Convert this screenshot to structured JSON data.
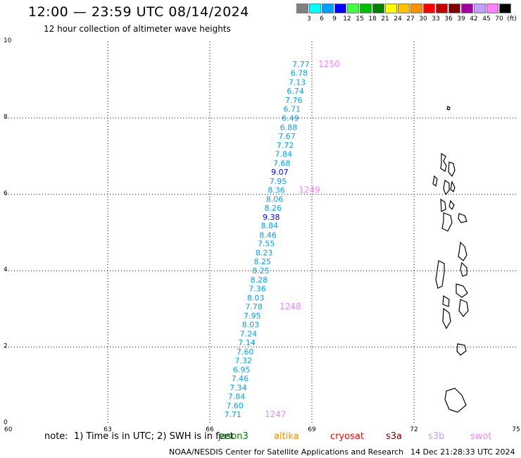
{
  "header": {
    "title": "12:00 — 23:59 UTC 08/14/2024",
    "subtitle": "12 hour collection of altimeter wave heights"
  },
  "color_scale": {
    "labels": [
      "3",
      "6",
      "9",
      "12",
      "15",
      "18",
      "21",
      "24",
      "27",
      "30",
      "33",
      "36",
      "39",
      "42",
      "45",
      "70",
      "(ft)"
    ],
    "colors": [
      "#808080",
      "#00ffff",
      "#00a0ff",
      "#0000ff",
      "#40ff40",
      "#00c000",
      "#008000",
      "#ffff00",
      "#ffc000",
      "#ff9000",
      "#ff0000",
      "#c00000",
      "#800000",
      "#a000a0",
      "#c0a0ff",
      "#ff80ff",
      "#000000"
    ]
  },
  "chart_data": {
    "type": "scatter",
    "xlim": [
      60,
      75
    ],
    "ylim": [
      0,
      10
    ],
    "xticks": [
      "60",
      "63",
      "66",
      "69",
      "72",
      "75"
    ],
    "yticks": [
      "0",
      "2",
      "4",
      "6",
      "8",
      "10"
    ],
    "grid": true,
    "track": {
      "points": [
        {
          "x": 66.93,
          "y": 0.24,
          "label": "7.71"
        },
        {
          "x": 66.99,
          "y": 0.47,
          "label": "7.60"
        },
        {
          "x": 67.04,
          "y": 0.71,
          "label": "7.84"
        },
        {
          "x": 67.09,
          "y": 0.94,
          "label": "7.34"
        },
        {
          "x": 67.14,
          "y": 1.18,
          "label": "7.46"
        },
        {
          "x": 67.19,
          "y": 1.41,
          "label": "6.95"
        },
        {
          "x": 67.24,
          "y": 1.65,
          "label": "7.32"
        },
        {
          "x": 67.29,
          "y": 1.88,
          "label": "7.60"
        },
        {
          "x": 67.34,
          "y": 2.12,
          "label": "7.14"
        },
        {
          "x": 67.39,
          "y": 2.35,
          "label": "7.24"
        },
        {
          "x": 67.45,
          "y": 2.59,
          "label": "8.03"
        },
        {
          "x": 67.5,
          "y": 2.82,
          "label": "7.95"
        },
        {
          "x": 67.55,
          "y": 3.06,
          "label": "7.78"
        },
        {
          "x": 67.6,
          "y": 3.29,
          "label": "8.03"
        },
        {
          "x": 67.65,
          "y": 3.53,
          "label": "7.36"
        },
        {
          "x": 67.7,
          "y": 3.76,
          "label": "8.28"
        },
        {
          "x": 67.75,
          "y": 4.0,
          "label": "8.25"
        },
        {
          "x": 67.8,
          "y": 4.24,
          "label": "8.25"
        },
        {
          "x": 67.85,
          "y": 4.47,
          "label": "8.23"
        },
        {
          "x": 67.91,
          "y": 4.71,
          "label": "7.55"
        },
        {
          "x": 67.96,
          "y": 4.94,
          "label": "8.46"
        },
        {
          "x": 68.01,
          "y": 5.18,
          "label": "8.84"
        },
        {
          "x": 68.06,
          "y": 5.41,
          "label": "9.38"
        },
        {
          "x": 68.11,
          "y": 5.65,
          "label": "8.26"
        },
        {
          "x": 68.16,
          "y": 5.88,
          "label": "8.06"
        },
        {
          "x": 68.21,
          "y": 6.12,
          "label": "8.36"
        },
        {
          "x": 68.26,
          "y": 6.35,
          "label": "7.95"
        },
        {
          "x": 68.31,
          "y": 6.59,
          "label": "9.07"
        },
        {
          "x": 68.37,
          "y": 6.82,
          "label": "7.68"
        },
        {
          "x": 68.42,
          "y": 7.06,
          "label": "7.84"
        },
        {
          "x": 68.47,
          "y": 7.29,
          "label": "7.72"
        },
        {
          "x": 68.52,
          "y": 7.53,
          "label": "7.67"
        },
        {
          "x": 68.57,
          "y": 7.76,
          "label": "6.88"
        },
        {
          "x": 68.62,
          "y": 8.0,
          "label": "6.49"
        },
        {
          "x": 68.67,
          "y": 8.24,
          "label": "6.71"
        },
        {
          "x": 68.72,
          "y": 8.47,
          "label": "7.76"
        },
        {
          "x": 68.77,
          "y": 8.71,
          "label": "6.74"
        },
        {
          "x": 68.82,
          "y": 8.94,
          "label": "7.13"
        },
        {
          "x": 68.88,
          "y": 9.18,
          "label": "6.78"
        },
        {
          "x": 68.93,
          "y": 9.41,
          "label": "7.77"
        }
      ]
    },
    "time_labels": [
      {
        "x": 67.61,
        "y": 0.24,
        "label": "1247"
      },
      {
        "x": 68.05,
        "y": 3.06,
        "label": "1248"
      },
      {
        "x": 68.61,
        "y": 6.12,
        "label": "1249"
      },
      {
        "x": 69.19,
        "y": 9.41,
        "label": "1250"
      }
    ]
  },
  "legend": {
    "note": "note:  1) Time is in UTC; 2) SWH is in feet",
    "satellites": [
      {
        "name": "jason3",
        "color": "#008000"
      },
      {
        "name": "altika",
        "color": "#ff9000"
      },
      {
        "name": "cryosat",
        "color": "#ff0000"
      },
      {
        "name": "s3a",
        "color": "#800000"
      },
      {
        "name": "s3b",
        "color": "#c0a0ff"
      },
      {
        "name": "swot",
        "color": "#ff80ff"
      }
    ]
  },
  "footer": {
    "credit": "NOAA/NESDIS Center for Satellite Applications and Research",
    "timestamp": "14 Dec 21:28:33 UTC 2024"
  }
}
